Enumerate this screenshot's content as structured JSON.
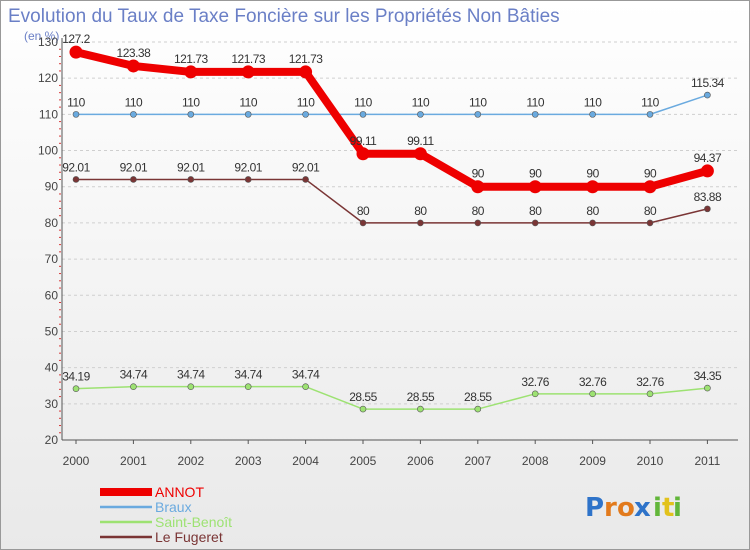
{
  "chart_data": {
    "type": "line",
    "title": "Evolution du Taux de Taxe Foncière sur les Propriétés Non Bâties",
    "unit_label": "(en %)",
    "xlabel": "",
    "ylabel": "",
    "x": [
      "2000",
      "2001",
      "2002",
      "2003",
      "2004",
      "2005",
      "2006",
      "2007",
      "2008",
      "2009",
      "2010",
      "2011"
    ],
    "y_ticks": [
      20,
      30,
      40,
      50,
      60,
      70,
      80,
      90,
      100,
      110,
      120,
      130
    ],
    "ylim": [
      20,
      130
    ],
    "grid": "dashed horizontal at tick marks",
    "legend_position": "bottom-left",
    "series": [
      {
        "name": "ANNOT",
        "color": "#ee0000",
        "emphasis": "thick",
        "values": [
          127.2,
          123.38,
          121.73,
          121.73,
          121.73,
          99.11,
          99.11,
          90,
          90,
          90,
          90,
          94.37
        ],
        "labels": [
          "127.2",
          "123.38",
          "121.73",
          "121.73",
          "121.73",
          "99.11",
          "99.11",
          "90",
          "90",
          "90",
          "90",
          "94.37"
        ]
      },
      {
        "name": "Braux",
        "color": "#6aaadf",
        "emphasis": "thin",
        "values": [
          110,
          110,
          110,
          110,
          110,
          110,
          110,
          110,
          110,
          110,
          110,
          115.34
        ],
        "labels": [
          "110",
          "110",
          "110",
          "110",
          "110",
          "110",
          "110",
          "110",
          "110",
          "110",
          "110",
          "115.34"
        ]
      },
      {
        "name": "Saint-Benoît",
        "color": "#9de272",
        "emphasis": "thin",
        "values": [
          34.19,
          34.74,
          34.74,
          34.74,
          34.74,
          28.55,
          28.55,
          28.55,
          32.76,
          32.76,
          32.76,
          34.35
        ],
        "labels": [
          "34.19",
          "34.74",
          "34.74",
          "34.74",
          "34.74",
          "28.55",
          "28.55",
          "28.55",
          "32.76",
          "32.76",
          "32.76",
          "34.35"
        ]
      },
      {
        "name": "Le Fugeret",
        "color": "#7a3535",
        "emphasis": "thin",
        "values": [
          92.01,
          92.01,
          92.01,
          92.01,
          92.01,
          80,
          80,
          80,
          80,
          80,
          80,
          83.88
        ],
        "labels": [
          "92.01",
          "92.01",
          "92.01",
          "92.01",
          "92.01",
          "80",
          "80",
          "80",
          "80",
          "80",
          "80",
          "83.88"
        ]
      }
    ]
  },
  "branding": {
    "logo_letters": [
      "P",
      "r",
      "o",
      "x",
      "i",
      "t",
      "i"
    ],
    "logo_colors": [
      "#2e73c9",
      "#e27a1c",
      "#e27a1c",
      "#2e73c9",
      "#62b63a",
      "#e2c21c",
      "#62b63a"
    ]
  }
}
